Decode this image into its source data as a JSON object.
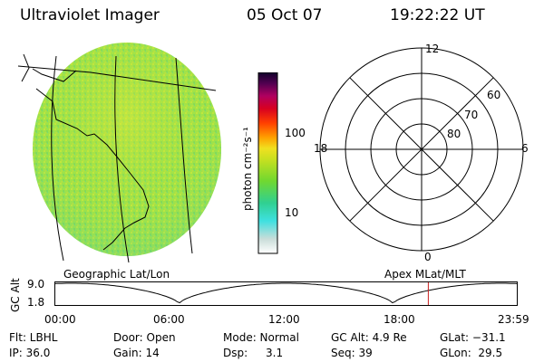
{
  "header": {
    "instrument": "Ultraviolet Imager",
    "date": "05 Oct 07",
    "time": "19:22:22 UT"
  },
  "colorbar": {
    "label": "photon cm⁻²s⁻¹",
    "ticks": [
      "100",
      "10"
    ]
  },
  "polar": {
    "mlt_labels": [
      "12",
      "18",
      "6",
      "0"
    ],
    "lat_labels": [
      "60",
      "70",
      "80"
    ]
  },
  "geo_caption": "Geographic Lat/Lon",
  "apex_caption": "Apex MLat/MLT",
  "orbit": {
    "ylabel": "GC Alt",
    "ymax": "9.0",
    "ymin": "1.8",
    "time_ticks": [
      "00:00",
      "06:00",
      "12:00",
      "18:00",
      "23:59"
    ],
    "current_marker_hours": 19.37
  },
  "status": {
    "flt": "Flt: LBHL",
    "ip": "IP: 36.0",
    "door": "Door: Open",
    "gain": "Gain: 14",
    "mode": "Mode: Normal",
    "dsp_label": "Dsp:",
    "dsp_value": "3.1",
    "gcalt": "GC Alt: 4.9 Re",
    "seq": "Seq: 39",
    "glat": "GLat: −31.1",
    "glon": "GLon:  29.5"
  }
}
